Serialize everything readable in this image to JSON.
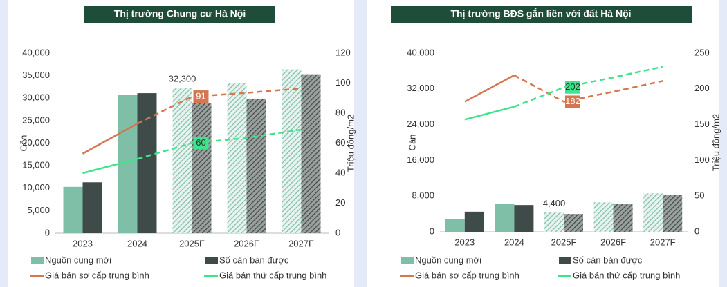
{
  "chart_data": [
    {
      "type": "combo",
      "title": "Thị trường Chung cư Hà Nội",
      "categories": [
        "2023",
        "2024",
        "2025F",
        "2026F",
        "2027F"
      ],
      "ylabel": "Căn",
      "y2label": "Triệu đồng/m2",
      "ylim": [
        0,
        40000
      ],
      "yticks": [
        0,
        {
          "value": 5000,
          "label": "5,000"
        },
        {
          "value": 10000,
          "label": "10,000"
        },
        {
          "value": 15000,
          "label": "15,000"
        },
        {
          "value": 20000,
          "label": "20,000"
        },
        {
          "value": 25000,
          "label": "25,000"
        },
        {
          "value": 30000,
          "label": "30,000"
        },
        {
          "value": 35000,
          "label": "35,000"
        },
        {
          "value": 40000,
          "label": "40,000"
        }
      ],
      "y2lim": [
        0,
        120
      ],
      "y2ticks": [
        0,
        20,
        40,
        60,
        80,
        100,
        120
      ],
      "hatched_from": "2025F",
      "dashed_from": "2024",
      "series": [
        {
          "name": "Nguồn cung mới",
          "type": "bar",
          "color": "#7fbfa8",
          "values": [
            10300,
            30800,
            32300,
            33300,
            36400
          ],
          "value_labels": [
            null,
            null,
            "32,300",
            null,
            null
          ]
        },
        {
          "name": "Số căn bán được",
          "type": "bar",
          "color": "#3f4b48",
          "values": [
            11300,
            31100,
            28900,
            29900,
            35300
          ]
        },
        {
          "name": "Giá bán sơ cấp trung bình",
          "type": "line",
          "axis": "y2",
          "color": "#d4764f",
          "label_color": "#ffffff",
          "values": [
            53,
            73,
            91,
            93.5,
            96.5
          ],
          "value_labels": [
            null,
            null,
            "91",
            null,
            null
          ]
        },
        {
          "name": "Giá bán thứ cấp trung bình",
          "type": "line",
          "axis": "y2",
          "color": "#3ee48c",
          "label_color": "#1e3a2c",
          "values": [
            40,
            49.5,
            60,
            63.5,
            69
          ],
          "value_labels": [
            null,
            null,
            "60",
            null,
            null
          ]
        }
      ]
    },
    {
      "type": "combo",
      "title": "Thị trường BĐS gắn liền với đất Hà Nội",
      "categories": [
        "2023",
        "2024",
        "2025F",
        "2026F",
        "2027F"
      ],
      "ylabel": "Căn",
      "y2label": "Triệu đồng/m2",
      "ylim": [
        0,
        40000
      ],
      "yticks": [
        0,
        {
          "value": 8000,
          "label": "8,000"
        },
        {
          "value": 16000,
          "label": "16,000"
        },
        {
          "value": 24000,
          "label": "24,000"
        },
        {
          "value": 32000,
          "label": "32,000"
        },
        {
          "value": 40000,
          "label": "40,000"
        }
      ],
      "y2lim": [
        0,
        250
      ],
      "y2ticks": [
        0,
        50,
        100,
        150,
        200,
        250
      ],
      "hatched_from": "2025F",
      "dashed_from": "2024",
      "series": [
        {
          "name": "Nguồn cung mới",
          "type": "bar",
          "color": "#7fbfa8",
          "values": [
            2800,
            6300,
            4400,
            6600,
            8600
          ],
          "value_labels": [
            null,
            null,
            "4,400",
            null,
            null
          ]
        },
        {
          "name": "Số căn bán được",
          "type": "bar",
          "color": "#3f4b48",
          "values": [
            4500,
            6000,
            4000,
            6300,
            8300
          ]
        },
        {
          "name": "Giá bán sơ cấp trung bình",
          "type": "line",
          "axis": "y2",
          "color": "#d4764f",
          "label_color": "#ffffff",
          "values": [
            182,
            219,
            182,
            196,
            211
          ],
          "value_labels": [
            null,
            null,
            "182",
            null,
            null
          ]
        },
        {
          "name": "Giá bán thứ cấp trung bình",
          "type": "line",
          "axis": "y2",
          "color": "#3ee48c",
          "label_color": "#1e3a2c",
          "values": [
            157,
            175,
            202,
            216,
            231
          ],
          "value_labels": [
            null,
            null,
            "202",
            null,
            null
          ]
        }
      ]
    }
  ]
}
